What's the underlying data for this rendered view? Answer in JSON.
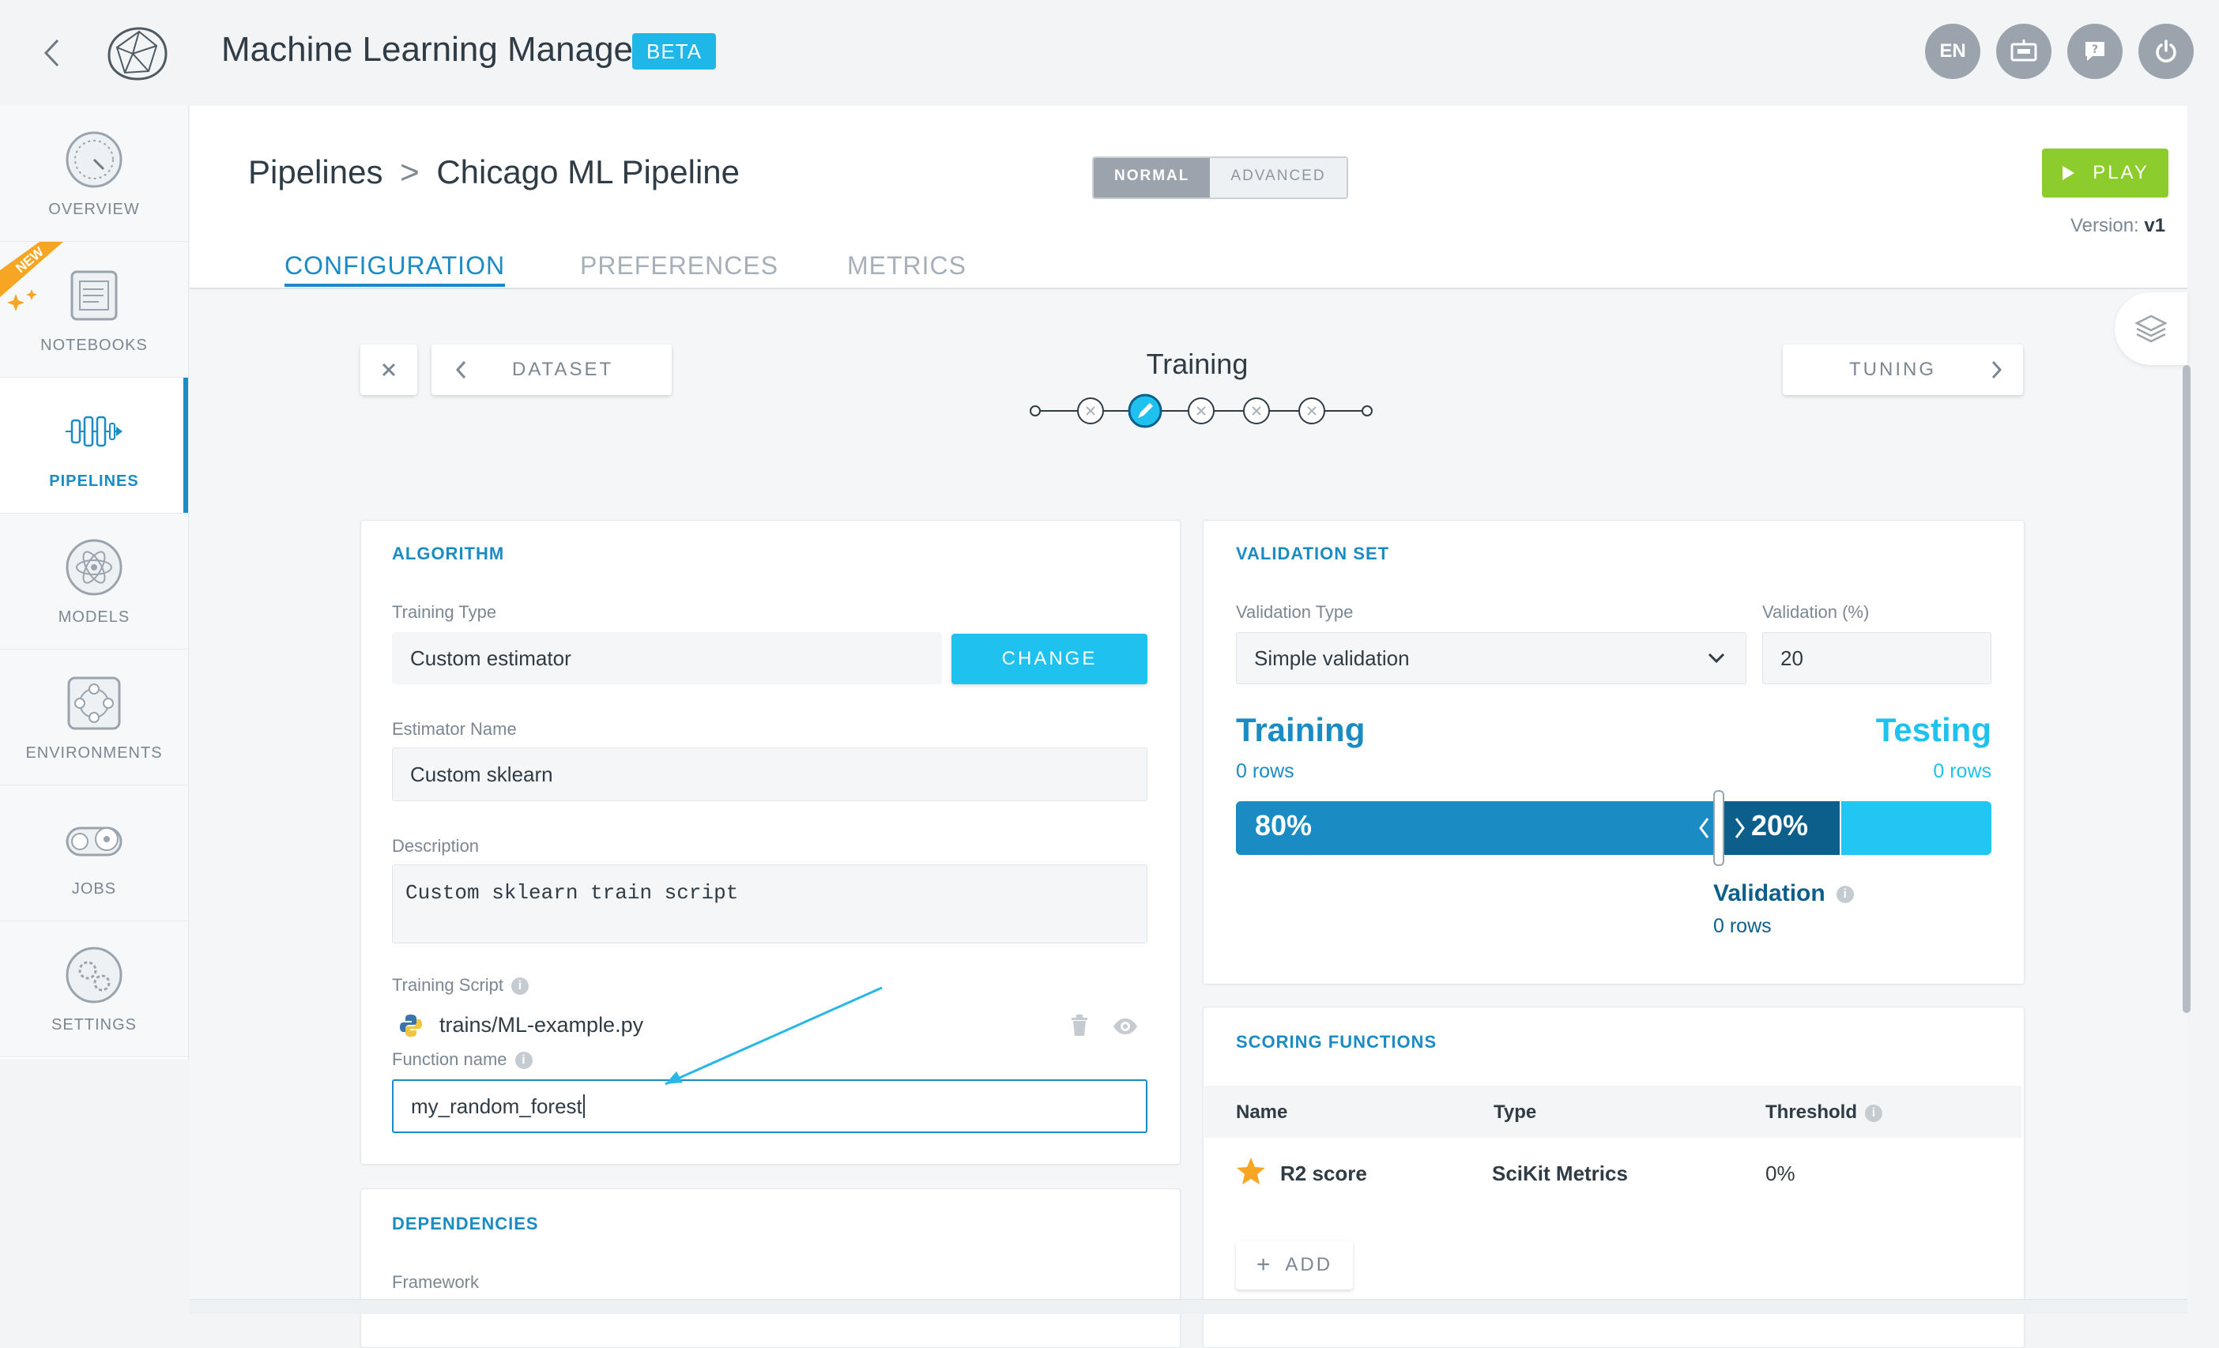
{
  "app": {
    "title": "Machine Learning Manager",
    "badge": "BETA"
  },
  "topbar": {
    "language": "EN"
  },
  "sidebar": {
    "new_ribbon": "NEW",
    "items": [
      {
        "label": "OVERVIEW",
        "icon": "gauge-icon"
      },
      {
        "label": "NOTEBOOKS",
        "icon": "notebook-icon"
      },
      {
        "label": "PIPELINES",
        "icon": "pipeline-icon",
        "active": true
      },
      {
        "label": "MODELS",
        "icon": "atom-icon"
      },
      {
        "label": "ENVIRONMENTS",
        "icon": "environment-icon"
      },
      {
        "label": "JOBS",
        "icon": "jobs-icon"
      },
      {
        "label": "SETTINGS",
        "icon": "gear-icon"
      }
    ]
  },
  "header": {
    "breadcrumb_root": "Pipelines",
    "breadcrumb_sep": ">",
    "breadcrumb_current": "Chicago ML Pipeline",
    "mode_normal": "NORMAL",
    "mode_advanced": "ADVANCED",
    "play_label": "PLAY",
    "version_label": "Version:",
    "version_value": "v1"
  },
  "tabs": [
    "CONFIGURATION",
    "PREFERENCES",
    "METRICS"
  ],
  "steps": {
    "prev_label": "DATASET",
    "next_label": "TUNING",
    "current_title": "Training"
  },
  "algorithm": {
    "title": "ALGORITHM",
    "training_type_label": "Training Type",
    "training_type_value": "Custom estimator",
    "change_label": "CHANGE",
    "estimator_name_label": "Estimator Name",
    "estimator_name_value": "Custom sklearn",
    "description_label": "Description",
    "description_value": "Custom sklearn train script",
    "training_script_label": "Training Script",
    "training_script_file": "trains/ML-example.py",
    "function_name_label": "Function name",
    "function_name_value": "my_random_forest"
  },
  "dependencies": {
    "title": "DEPENDENCIES",
    "framework_label": "Framework"
  },
  "validation": {
    "title": "VALIDATION SET",
    "type_label": "Validation Type",
    "type_value": "Simple validation",
    "percent_label": "Validation (%)",
    "percent_value": "20",
    "training_heading": "Training",
    "training_rows": "0 rows",
    "testing_heading": "Testing",
    "testing_rows": "0 rows",
    "train_pct": "80%",
    "valid_pct": "20%",
    "validation_heading": "Validation",
    "validation_rows": "0 rows",
    "split": {
      "training": 0.8,
      "validation": 0.2
    }
  },
  "scoring": {
    "title": "SCORING FUNCTIONS",
    "columns": [
      "Name",
      "Type",
      "Threshold"
    ],
    "rows": [
      {
        "name": "R2 score",
        "type": "SciKit Metrics",
        "threshold": "0%"
      }
    ],
    "add_label": "ADD"
  },
  "colors": {
    "accent": "#1a8bc3",
    "play": "#8ccc2c",
    "change": "#1fc1ef",
    "validation": "#0c5f8a"
  }
}
